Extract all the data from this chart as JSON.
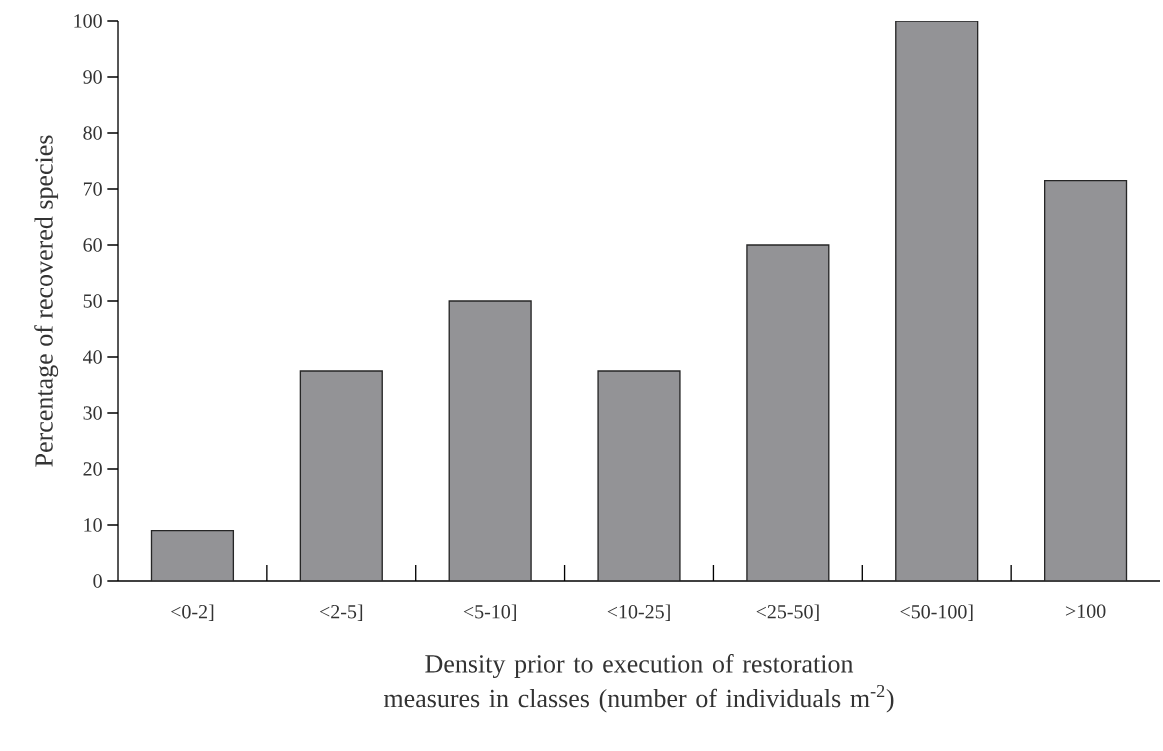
{
  "chart_data": {
    "type": "bar",
    "xlabel": "Density prior to execution of restoration measures in classes (number of individuals m$^{-2}$)",
    "ylabel": "Percentage of recovered species",
    "categories": [
      "<0-2]",
      "<2-5]",
      "<5-10]",
      "<10-25]",
      "<25-50]",
      "<50-100]",
      ">100"
    ],
    "values": [
      9,
      37.5,
      50,
      37.5,
      60,
      100,
      71.5
    ],
    "color": "#939396",
    "ylim": [
      0,
      100
    ],
    "yticks": [
      0,
      10,
      20,
      30,
      40,
      50,
      60,
      70,
      80,
      90,
      100
    ],
    "grid": false
  }
}
